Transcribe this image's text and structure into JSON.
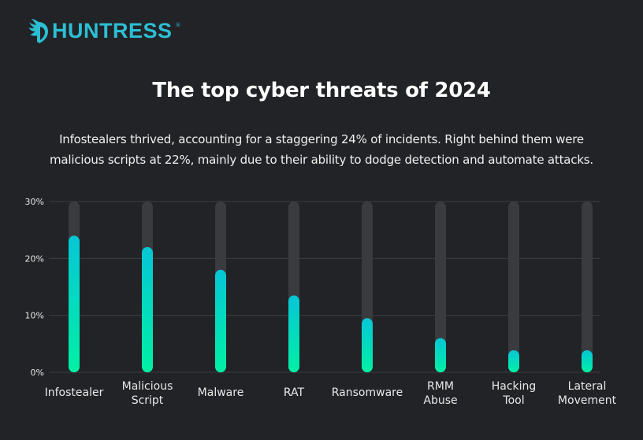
{
  "brand": {
    "name": "HUNTRESS",
    "registered": "®",
    "color": "#2cbfd3"
  },
  "title": "The top cyber threats of 2024",
  "subtitle": {
    "line1": "Infostealers thrived, accounting for a staggering 24% of incidents. Right behind them were",
    "line2": "malicious scripts at 22%, mainly due to their ability to dodge detection and automate attacks."
  },
  "chart_data": {
    "type": "bar",
    "title": "The top cyber threats of 2024",
    "xlabel": "",
    "ylabel": "",
    "ylim": [
      0,
      30
    ],
    "yticks": [
      0,
      10,
      20,
      30
    ],
    "ytick_labels": [
      "0%",
      "10%",
      "20%",
      "30%"
    ],
    "grid": true,
    "categories": [
      [
        "Infostealer"
      ],
      [
        "Malicious",
        "Script"
      ],
      [
        "Malware"
      ],
      [
        "RAT"
      ],
      [
        "Ransomware"
      ],
      [
        "RMM",
        "Abuse"
      ],
      [
        "Hacking",
        "Tool"
      ],
      [
        "Lateral",
        "Movement"
      ]
    ],
    "values": [
      24,
      22,
      18,
      13.5,
      9.5,
      6,
      3.5,
      3.5
    ],
    "colors": {
      "track": "#3a3b3e",
      "gradient_top": "#06c6d6",
      "gradient_bottom": "#00f0a4",
      "grid": "#3d3e41"
    }
  }
}
